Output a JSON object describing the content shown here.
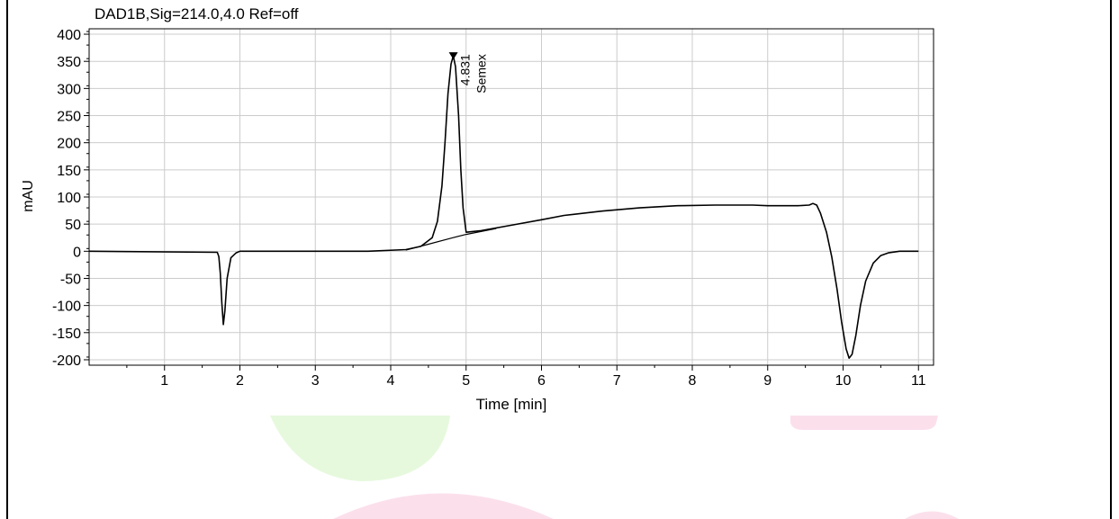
{
  "chart_data": {
    "type": "line",
    "title": "DAD1B,Sig=214.0,4.0  Ref=off",
    "xlabel": "Time [min]",
    "ylabel": "mAU",
    "xlim": [
      0,
      11.2
    ],
    "ylim": [
      -210,
      410
    ],
    "x_ticks": [
      1,
      2,
      3,
      4,
      5,
      6,
      7,
      8,
      9,
      10,
      11
    ],
    "y_ticks": [
      400,
      350,
      300,
      250,
      200,
      150,
      100,
      50,
      0,
      -50,
      -100,
      -150,
      -200
    ],
    "grid": true,
    "series": [
      {
        "x": [
          0,
          1.7,
          1.72,
          1.74,
          1.76,
          1.78,
          1.8,
          1.83,
          1.88,
          1.95,
          2.0,
          3.0,
          3.7,
          4.2,
          4.4,
          4.55,
          4.62,
          4.68,
          4.72,
          4.76,
          4.8,
          4.83,
          4.86,
          4.9,
          4.93,
          4.96,
          5.0,
          5.2,
          5.6,
          6.0,
          6.3,
          6.8,
          7.3,
          7.8,
          8.3,
          8.8,
          9.0,
          9.2,
          9.4,
          9.55,
          9.6,
          9.65,
          9.7,
          9.78,
          9.85,
          9.92,
          9.98,
          10.04,
          10.08,
          10.12,
          10.17,
          10.23,
          10.3,
          10.4,
          10.5,
          10.6,
          10.75,
          11.0
        ],
        "y": [
          0,
          -2,
          -10,
          -40,
          -95,
          -135,
          -110,
          -50,
          -12,
          -3,
          0,
          0,
          0,
          3,
          9,
          25,
          55,
          120,
          200,
          290,
          345,
          360,
          340,
          250,
          150,
          80,
          35,
          38,
          48,
          58,
          66,
          74,
          80,
          84,
          85,
          85,
          84,
          84,
          84,
          85,
          88,
          85,
          70,
          35,
          -10,
          -70,
          -130,
          -180,
          -197,
          -190,
          -155,
          -100,
          -55,
          -22,
          -8,
          -3,
          0,
          0
        ]
      },
      {
        "x": [
          4.2,
          4.5,
          4.8,
          5.0,
          5.4
        ],
        "y": [
          2,
          13,
          24,
          31,
          42
        ]
      }
    ],
    "annotations": [
      {
        "x": 4.831,
        "y": 360,
        "label": "4.831"
      },
      {
        "x": 4.831,
        "y": 360,
        "label": "Semex"
      }
    ]
  },
  "colors": {
    "trace": "#000000",
    "grid": "#cccccc",
    "axis": "#000000",
    "watermark_green": "#e6f9dd",
    "watermark_pink": "#fbe0ec"
  }
}
